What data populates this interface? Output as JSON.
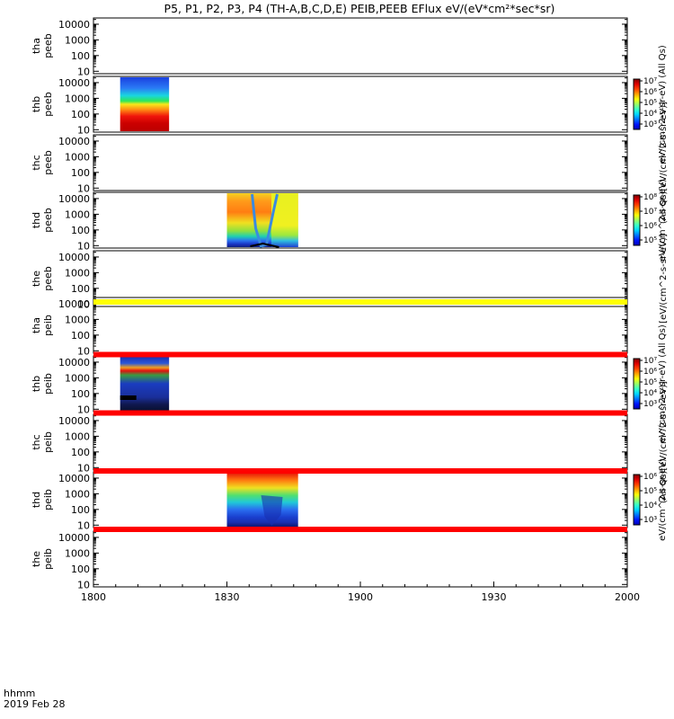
{
  "chart_data": {
    "type": "heatmap",
    "title": "P5, P1, P2, P3, P4 (TH-A,B,C,D,E) PEIB,PEEB EFlux eV/(eV*cm²*sec*sr)",
    "x_axis": {
      "ticks": [
        "1800",
        "1830",
        "1900",
        "1930",
        "2000"
      ],
      "label_line1": "hhmm",
      "label_line2": "2019 Feb 28"
    },
    "y_ticks": [
      "10",
      "100",
      "1000",
      "10000"
    ],
    "ylim": [
      7,
      25000
    ],
    "ylog": true,
    "zlabels": {
      "thb_peeb": "eV/(cm^2-s-sr-eV) (All Qs)",
      "thc_peeb": "(All Qs)[eV/(cm^2-s-sr-eV)]",
      "thd_peeb": "eV/(cm^2-s-sr-eV)",
      "the_peeb": "[eV/(cm^2-s-sr-eV)]",
      "thb_peib": "eV/(cm^2-s-sr-eV) (All Qs)",
      "thc_peib": "(All Qs)[eV/(cm^2-s-sr-eV)]",
      "thd_peib": "eV/(cm^2-s-sr-eV)"
    },
    "colorbars": {
      "thb_peeb": [
        "10⁷",
        "10⁶",
        "10⁵",
        "10⁴",
        "10³"
      ],
      "thd_peeb": [
        "10⁸",
        "10⁷",
        "10⁶",
        "10⁵"
      ],
      "thb_peib": [
        "10⁷",
        "10⁶",
        "10⁵",
        "10⁴",
        "10³"
      ],
      "thd_peib": [
        "10⁶",
        "10⁵",
        "10⁴",
        "10³"
      ]
    },
    "panels": [
      {
        "probe": "tha",
        "species": "peeb",
        "data": []
      },
      {
        "probe": "thb",
        "species": "peeb",
        "data": [
          {
            "t_start": "18:06",
            "t_end": "18:17"
          }
        ]
      },
      {
        "probe": "thc",
        "species": "peeb",
        "data": []
      },
      {
        "probe": "thd",
        "species": "peeb",
        "data": [
          {
            "t_start": "18:30",
            "t_end": "18:46"
          }
        ]
      },
      {
        "probe": "the",
        "species": "peeb",
        "data": []
      },
      {
        "probe": "tha",
        "species": "peib",
        "data": []
      },
      {
        "probe": "thb",
        "species": "peib",
        "data": [
          {
            "t_start": "18:06",
            "t_end": "18:17"
          }
        ]
      },
      {
        "probe": "thc",
        "species": "peib",
        "data": []
      },
      {
        "probe": "thd",
        "species": "peib",
        "data": [
          {
            "t_start": "18:30",
            "t_end": "18:46"
          }
        ]
      },
      {
        "probe": "the",
        "species": "peib",
        "data": []
      }
    ],
    "status_bars": [
      {
        "after_panel": 4,
        "color": "#ffff00"
      },
      {
        "after_panel": 5,
        "color": "#ff0000"
      },
      {
        "after_panel": 6,
        "color": "#ff0000"
      },
      {
        "after_panel": 7,
        "color": "#ff0000"
      },
      {
        "after_panel": 8,
        "color": "#ff0000"
      }
    ]
  }
}
